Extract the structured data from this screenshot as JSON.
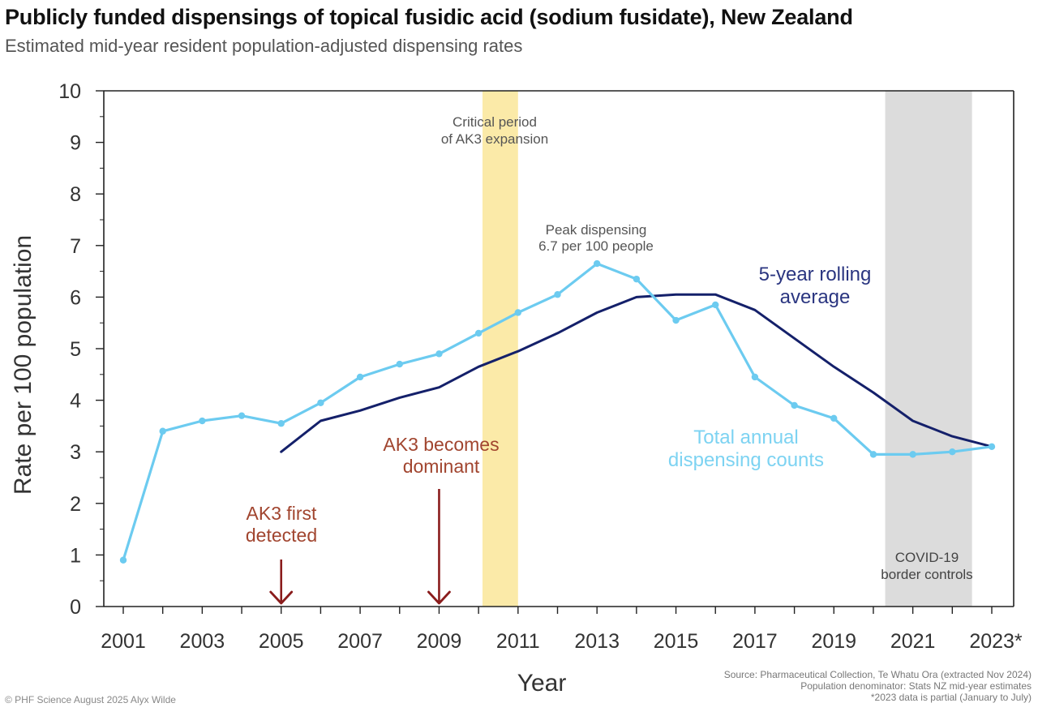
{
  "title": "Publicly funded dispensings of topical fusidic acid (sodium fusidate), New Zealand",
  "subtitle": "Estimated mid-year resident population-adjusted dispensing rates",
  "chart_data": {
    "type": "line",
    "title": "Publicly funded dispensings of topical fusidic acid (sodium fusidate), New Zealand",
    "subtitle": "Estimated mid-year resident population-adjusted dispensing rates",
    "xlabel": "Year",
    "ylabel": "Rate per 100 population",
    "xlim": [
      2000,
      2024
    ],
    "ylim": [
      0,
      10
    ],
    "x_ticks": [
      2001,
      2003,
      2005,
      2007,
      2009,
      2011,
      2013,
      2015,
      2017,
      2019,
      2021
    ],
    "last_tick_label": "2023*",
    "last_tick_value": 2023,
    "y_ticks": [
      0,
      1,
      2,
      3,
      4,
      5,
      6,
      7,
      8,
      9,
      10
    ],
    "grid": false,
    "series": [
      {
        "name": "Total annual dispensing counts",
        "color": "#6ccbf0",
        "x": [
          2001,
          2002,
          2003,
          2004,
          2005,
          2006,
          2007,
          2008,
          2009,
          2010,
          2011,
          2012,
          2013,
          2014,
          2015,
          2016,
          2017,
          2018,
          2019,
          2020,
          2021,
          2022,
          2023
        ],
        "values": [
          0.9,
          3.4,
          3.6,
          3.7,
          3.55,
          3.95,
          4.45,
          4.7,
          4.9,
          5.3,
          5.7,
          6.05,
          6.65,
          6.35,
          5.55,
          5.85,
          4.45,
          3.9,
          3.65,
          2.95,
          2.95,
          3.0,
          3.1
        ],
        "markers": true
      },
      {
        "name": "5-year rolling average",
        "color": "#14206a",
        "x": [
          2005,
          2006,
          2007,
          2008,
          2009,
          2010,
          2011,
          2012,
          2013,
          2014,
          2015,
          2016,
          2017,
          2018,
          2019,
          2020,
          2021,
          2022,
          2023
        ],
        "values": [
          3.0,
          3.6,
          3.8,
          4.05,
          4.25,
          4.65,
          4.95,
          5.3,
          5.7,
          6.0,
          6.05,
          6.05,
          5.75,
          5.2,
          4.65,
          4.15,
          3.6,
          3.3,
          3.1
        ],
        "markers": false
      }
    ],
    "shaded_regions": [
      {
        "x_start": 2010.1,
        "x_end": 2011.0,
        "color": "#fbeaa8",
        "label_lines": [
          "Critical period",
          "of AK3 expansion"
        ]
      },
      {
        "x_start": 2020.3,
        "x_end": 2022.5,
        "color": "#dcdcdc",
        "label_lines": [
          "COVID-19",
          "border controls"
        ]
      }
    ],
    "annotations": {
      "peak_lines": [
        "Peak dispensing",
        "6.7 per 100 people"
      ],
      "rolling_label_lines": [
        "5-year rolling",
        "average"
      ],
      "total_label_lines": [
        "Total annual",
        "dispensing counts"
      ],
      "ak3_first_lines": [
        "AK3 first",
        "detected"
      ],
      "ak3_first_year": 2005,
      "ak3_dominant_lines": [
        "AK3 becomes",
        "dominant"
      ],
      "ak3_dominant_year": 2009
    },
    "colors": {
      "total": "#6ccbf0",
      "rolling": "#14206a",
      "annotation_red": "#a1452f",
      "arrow": "#8a1c1c"
    }
  },
  "source_lines": [
    "Source: Pharmaceutical Collection, Te Whatu Ora (extracted Nov 2024)",
    "Population denominator: Stats NZ mid-year estimates",
    "*2023 data is partial (January to July)"
  ],
  "credit": "© PHF Science August 2025 Alyx Wilde"
}
